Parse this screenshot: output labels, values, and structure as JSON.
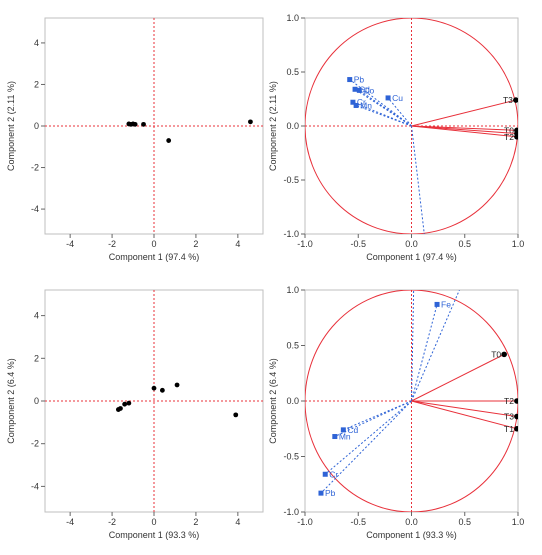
{
  "colors": {
    "frame": "#bfbfbf",
    "zero_line": "#e8303a",
    "score_point": "#000000",
    "circle": "#e8303a",
    "loading_blue": "#2e63d6",
    "loading_red": "#e8303a",
    "text": "#333333"
  },
  "chart_data": [
    {
      "type": "scatter",
      "title": "",
      "xlabel": "Component 1  (97.4 %)",
      "ylabel": "Component 2  (2.11 %)",
      "xlim": [
        -5.2,
        5.2
      ],
      "ylim": [
        -5.2,
        5.2
      ],
      "xticks": [
        -4,
        -2,
        0,
        2,
        4
      ],
      "yticks": [
        4,
        2,
        0,
        -2,
        -4
      ],
      "grid": false,
      "points": [
        {
          "x": -1.2,
          "y": 0.1
        },
        {
          "x": -1.1,
          "y": 0.08
        },
        {
          "x": -1.0,
          "y": 0.1
        },
        {
          "x": -0.9,
          "y": 0.08
        },
        {
          "x": -0.5,
          "y": 0.08
        },
        {
          "x": 0.7,
          "y": -0.7
        },
        {
          "x": 4.6,
          "y": 0.2
        }
      ]
    },
    {
      "type": "scatter",
      "title": "",
      "xlabel": "Component 1  (97.4 %)",
      "ylabel": "Component 2  (2.11 %)",
      "xlim": [
        -1.0,
        1.0
      ],
      "ylim": [
        -1.0,
        1.0
      ],
      "xticks": [
        "-1.0",
        "-0.5",
        "0.0",
        "0.5",
        "1.0"
      ],
      "yticks": [
        "1.0",
        "0.5",
        "0.0",
        "-0.5",
        "-1.0"
      ],
      "unit_circle": true,
      "variables": [
        {
          "label": "Pb",
          "x": -0.58,
          "y": 0.43
        },
        {
          "label": "Cd",
          "x": -0.53,
          "y": 0.34
        },
        {
          "label": "Co",
          "x": -0.49,
          "y": 0.33
        },
        {
          "label": "Cu",
          "x": -0.22,
          "y": 0.26
        },
        {
          "label": "Cr",
          "x": -0.55,
          "y": 0.22
        },
        {
          "label": "Mn",
          "x": -0.52,
          "y": 0.19
        },
        {
          "label": "",
          "x": 0.12,
          "y": -1.0
        }
      ],
      "treatments": [
        {
          "label": "T3",
          "x": 0.98,
          "y": 0.24
        },
        {
          "label": "T0",
          "x": 0.99,
          "y": -0.04
        },
        {
          "label": "T2",
          "x": 0.99,
          "y": -0.1
        },
        {
          "label": "",
          "x": 0.99,
          "y": -0.07
        }
      ]
    },
    {
      "type": "scatter",
      "title": "",
      "xlabel": "Component 1  (93.3 %)",
      "ylabel": "Component 2  (6.4 %)",
      "xlim": [
        -5.2,
        5.2
      ],
      "ylim": [
        -5.2,
        5.2
      ],
      "xticks": [
        -4,
        -2,
        0,
        2,
        4
      ],
      "yticks": [
        4,
        2,
        0,
        -2,
        -4
      ],
      "grid": false,
      "points": [
        {
          "x": -1.7,
          "y": -0.4
        },
        {
          "x": -1.6,
          "y": -0.35
        },
        {
          "x": -1.4,
          "y": -0.15
        },
        {
          "x": -1.2,
          "y": -0.1
        },
        {
          "x": 0.0,
          "y": 0.6
        },
        {
          "x": 0.4,
          "y": 0.5
        },
        {
          "x": 1.1,
          "y": 0.75
        },
        {
          "x": 3.9,
          "y": -0.65
        }
      ]
    },
    {
      "type": "scatter",
      "title": "",
      "xlabel": "Component 1  (93.3 %)",
      "ylabel": "Component 2  (6.4 %)",
      "xlim": [
        -1.0,
        1.0
      ],
      "ylim": [
        -1.0,
        1.0
      ],
      "xticks": [
        "-1.0",
        "-0.5",
        "0.0",
        "0.5",
        "1.0"
      ],
      "yticks": [
        "1.0",
        "0.5",
        "0.0",
        "-0.5",
        "-1.0"
      ],
      "unit_circle": true,
      "variables": [
        {
          "label": "Fe",
          "x": 0.24,
          "y": 0.87
        },
        {
          "label": "Cd",
          "x": -0.64,
          "y": -0.26
        },
        {
          "label": "Mn",
          "x": -0.72,
          "y": -0.32
        },
        {
          "label": "Cr",
          "x": -0.81,
          "y": -0.66
        },
        {
          "label": "Pb",
          "x": -0.85,
          "y": -0.83
        },
        {
          "label": "",
          "x": 0.45,
          "y": 1.0
        },
        {
          "label": "",
          "x": 0.02,
          "y": 1.0
        }
      ],
      "treatments": [
        {
          "label": "T0",
          "x": 0.87,
          "y": 0.42
        },
        {
          "label": "T2",
          "x": 0.99,
          "y": 0.0
        },
        {
          "label": "T3",
          "x": 0.99,
          "y": -0.14
        },
        {
          "label": "T1",
          "x": 0.99,
          "y": -0.25
        }
      ]
    }
  ]
}
